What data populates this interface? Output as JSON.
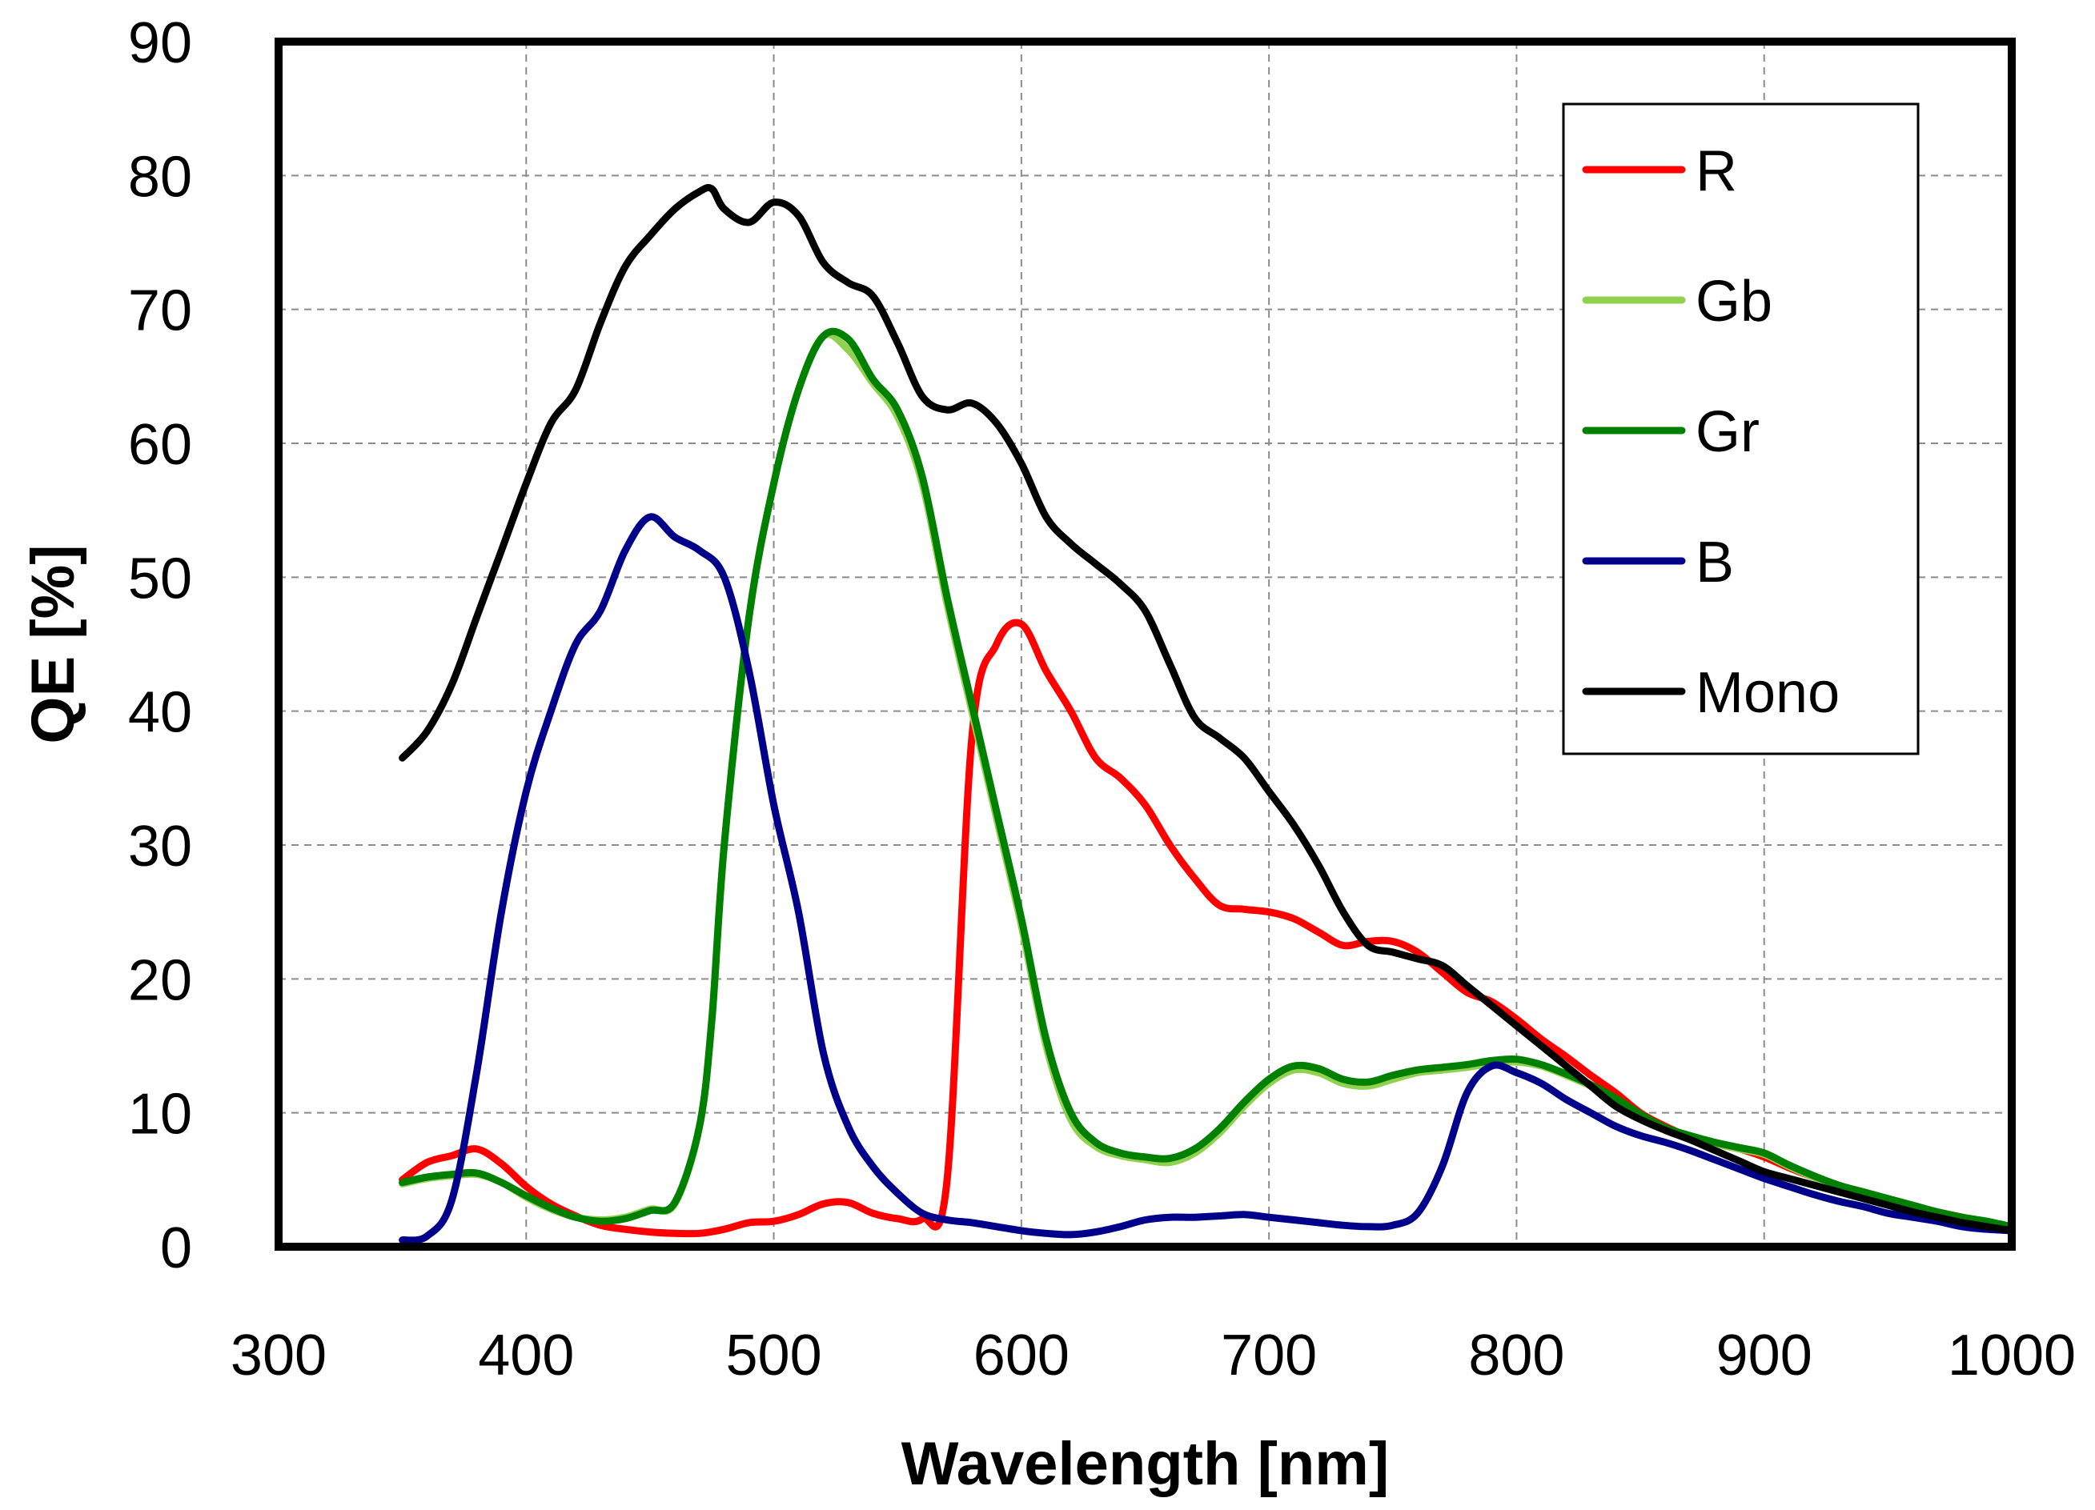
{
  "chart_data": {
    "type": "line",
    "title": "",
    "xlabel": "Wavelength [nm]",
    "ylabel": "QE [%]",
    "xlim": [
      300,
      1000
    ],
    "ylim": [
      0,
      90
    ],
    "xticks": [
      300,
      400,
      500,
      600,
      700,
      800,
      900,
      1000
    ],
    "yticks": [
      0,
      10,
      20,
      30,
      40,
      50,
      60,
      70,
      80,
      90
    ],
    "grid": true,
    "legend_position": "top-right",
    "series": [
      {
        "name": "R",
        "color": "#ff0000",
        "x": [
          350,
          360,
          370,
          380,
          390,
          400,
          410,
          420,
          430,
          440,
          450,
          460,
          470,
          480,
          490,
          500,
          510,
          520,
          530,
          540,
          550,
          560,
          570,
          580,
          590,
          600,
          610,
          620,
          630,
          640,
          650,
          660,
          670,
          680,
          690,
          700,
          710,
          720,
          730,
          740,
          750,
          760,
          770,
          780,
          790,
          800,
          810,
          820,
          830,
          840,
          850,
          860,
          870,
          880,
          890,
          900,
          910,
          920,
          930,
          940,
          950,
          960,
          970,
          980,
          990,
          1000
        ],
        "y": [
          5,
          6.3,
          6.8,
          7.3,
          6.2,
          4.5,
          3.2,
          2.3,
          1.6,
          1.3,
          1.1,
          1,
          1,
          1.3,
          1.8,
          1.9,
          2.4,
          3.2,
          3.3,
          2.5,
          2.1,
          2.1,
          5,
          38,
          45,
          46.5,
          43,
          40,
          36.5,
          35,
          33,
          30,
          27.5,
          25.5,
          25.2,
          25,
          24.5,
          23.5,
          22.5,
          22.8,
          22.8,
          22,
          20.5,
          19,
          18.3,
          17,
          15.5,
          14.2,
          12.8,
          11.5,
          10,
          9,
          8.2,
          7.7,
          7.3,
          6.7,
          5.9,
          5.2,
          4.6,
          4,
          3.5,
          3,
          2.6,
          2.2,
          1.8,
          1.4
        ]
      },
      {
        "name": "Gb",
        "color": "#92d050",
        "x": [
          350,
          360,
          370,
          380,
          390,
          400,
          410,
          420,
          430,
          440,
          450,
          460,
          470,
          475,
          480,
          490,
          500,
          510,
          520,
          530,
          540,
          550,
          560,
          570,
          580,
          590,
          600,
          610,
          620,
          630,
          640,
          650,
          660,
          670,
          680,
          690,
          700,
          710,
          720,
          730,
          740,
          750,
          760,
          770,
          780,
          790,
          800,
          810,
          820,
          830,
          840,
          850,
          860,
          870,
          880,
          890,
          900,
          910,
          920,
          930,
          940,
          950,
          960,
          970,
          980,
          990,
          1000
        ],
        "y": [
          4.7,
          5.1,
          5.3,
          5.4,
          4.8,
          3.7,
          2.8,
          2.2,
          2,
          2.2,
          2.8,
          3.2,
          9,
          17,
          30,
          47,
          57,
          64,
          68,
          67,
          64.5,
          62,
          57,
          48,
          40,
          32,
          24,
          15,
          9.5,
          7.5,
          6.8,
          6.5,
          6.3,
          7,
          8.5,
          10.5,
          12.2,
          13.2,
          13,
          12.2,
          12,
          12.5,
          13,
          13.2,
          13.4,
          13.7,
          13.8,
          13.5,
          12.8,
          12,
          11,
          9.8,
          8.8,
          8.2,
          7.7,
          7.3,
          6.9,
          6,
          5.2,
          4.5,
          4,
          3.5,
          3,
          2.5,
          2.1,
          1.8,
          1.4
        ]
      },
      {
        "name": "Gr",
        "color": "#008000",
        "x": [
          350,
          360,
          370,
          380,
          390,
          400,
          410,
          420,
          430,
          440,
          450,
          460,
          470,
          475,
          480,
          490,
          500,
          510,
          520,
          530,
          540,
          550,
          560,
          570,
          580,
          590,
          600,
          610,
          620,
          630,
          640,
          650,
          660,
          670,
          680,
          690,
          700,
          710,
          720,
          730,
          740,
          750,
          760,
          770,
          780,
          790,
          800,
          810,
          820,
          830,
          840,
          850,
          860,
          870,
          880,
          890,
          900,
          910,
          920,
          930,
          940,
          950,
          960,
          970,
          980,
          990,
          1000
        ],
        "y": [
          4.8,
          5.2,
          5.4,
          5.5,
          4.8,
          3.8,
          2.9,
          2.2,
          1.9,
          2.1,
          2.7,
          3.3,
          9,
          17,
          30,
          47,
          57,
          64,
          68,
          67.8,
          64.8,
          62.5,
          57.5,
          48.5,
          40.5,
          32.5,
          24.5,
          15.5,
          10,
          7.8,
          7,
          6.7,
          6.6,
          7.3,
          8.8,
          10.8,
          12.5,
          13.5,
          13.3,
          12.5,
          12.3,
          12.8,
          13.2,
          13.4,
          13.6,
          13.9,
          14,
          13.6,
          12.9,
          12.1,
          11.1,
          9.9,
          8.9,
          8.3,
          7.8,
          7.4,
          7,
          6.1,
          5.3,
          4.6,
          4.1,
          3.6,
          3.1,
          2.6,
          2.2,
          1.9,
          1.5
        ]
      },
      {
        "name": "B",
        "color": "#00008b",
        "x": [
          350,
          360,
          370,
          380,
          390,
          400,
          410,
          420,
          430,
          440,
          450,
          460,
          470,
          480,
          490,
          500,
          510,
          520,
          530,
          540,
          550,
          560,
          570,
          580,
          590,
          600,
          610,
          620,
          630,
          640,
          650,
          660,
          670,
          680,
          690,
          700,
          710,
          720,
          730,
          740,
          750,
          760,
          770,
          780,
          790,
          800,
          810,
          820,
          830,
          840,
          850,
          860,
          870,
          880,
          890,
          900,
          910,
          920,
          930,
          940,
          950,
          960,
          970,
          980,
          990,
          1000
        ],
        "y": [
          0.5,
          0.8,
          3.5,
          13,
          25,
          34,
          40,
          45,
          47.5,
          52,
          54.5,
          53,
          52,
          50,
          43,
          33,
          25,
          14.5,
          9,
          6,
          4,
          2.5,
          2,
          1.8,
          1.5,
          1.2,
          1,
          0.9,
          1.1,
          1.5,
          2,
          2.2,
          2.2,
          2.3,
          2.4,
          2.2,
          2,
          1.8,
          1.6,
          1.5,
          1.6,
          2.5,
          6,
          11.5,
          13.5,
          13,
          12.2,
          11,
          10,
          9,
          8.3,
          7.8,
          7.2,
          6.5,
          5.8,
          5.1,
          4.5,
          3.9,
          3.4,
          3,
          2.5,
          2.2,
          1.9,
          1.5,
          1.3,
          1.2
        ]
      },
      {
        "name": "Mono",
        "color": "#000000",
        "x": [
          350,
          360,
          370,
          380,
          390,
          400,
          410,
          420,
          430,
          440,
          450,
          460,
          470,
          475,
          480,
          490,
          500,
          510,
          520,
          530,
          540,
          550,
          560,
          570,
          580,
          590,
          600,
          610,
          620,
          630,
          640,
          650,
          660,
          670,
          680,
          690,
          700,
          710,
          720,
          730,
          740,
          750,
          760,
          770,
          780,
          790,
          800,
          810,
          820,
          830,
          840,
          850,
          860,
          870,
          880,
          890,
          900,
          910,
          920,
          930,
          940,
          950,
          960,
          970,
          980,
          990,
          1000
        ],
        "y": [
          36.5,
          38.5,
          42,
          47,
          52,
          57,
          61.5,
          64,
          69,
          73.2,
          75.5,
          77.5,
          78.8,
          79,
          77.5,
          76.5,
          78,
          77,
          73.5,
          72,
          71,
          67.5,
          63.5,
          62.5,
          63,
          61.5,
          58.5,
          54.5,
          52.5,
          51,
          49.5,
          47.5,
          43.5,
          39.5,
          38,
          36.5,
          34,
          31.5,
          28.5,
          25,
          22.5,
          22,
          21.5,
          21,
          19.5,
          18,
          16.5,
          15,
          13.5,
          12,
          10.5,
          9.5,
          8.7,
          8,
          7.2,
          6.4,
          5.6,
          5.1,
          4.6,
          4.1,
          3.6,
          3.1,
          2.6,
          2.2,
          1.8,
          1.5,
          1.2
        ]
      }
    ]
  }
}
